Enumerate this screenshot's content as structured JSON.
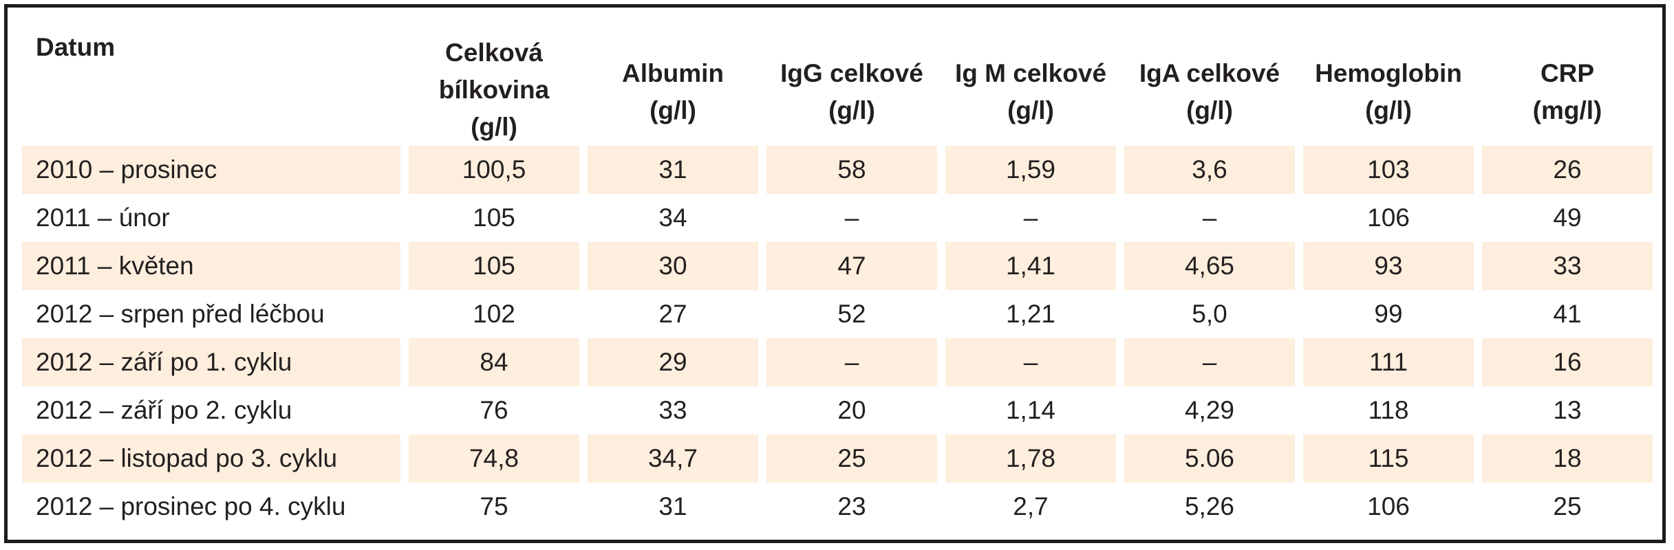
{
  "table": {
    "headers": [
      [
        "Datum"
      ],
      [
        "Celková",
        "bílkovina",
        "(g/l)"
      ],
      [
        "Albumin",
        "(g/l)"
      ],
      [
        "IgG celkové",
        "(g/l)"
      ],
      [
        "Ig M celkové",
        "(g/l)"
      ],
      [
        "IgA celkové",
        "(g/l)"
      ],
      [
        "Hemoglobin",
        "(g/l)"
      ],
      [
        "CRP",
        "(mg/l)"
      ]
    ],
    "rows": [
      [
        "2010 – prosinec",
        "100,5",
        "31",
        "58",
        "1,59",
        "3,6",
        "103",
        "26"
      ],
      [
        "2011 – únor",
        "105",
        "34",
        "–",
        "–",
        "–",
        "106",
        "49"
      ],
      [
        "2011 – květen",
        "105",
        "30",
        "47",
        "1,41",
        "4,65",
        "93",
        "33"
      ],
      [
        "2012 – srpen před léčbou",
        "102",
        "27",
        "52",
        "1,21",
        "5,0",
        "99",
        "41"
      ],
      [
        "2012 – září po 1. cyklu",
        "84",
        "29",
        "–",
        "–",
        "–",
        "111",
        "16"
      ],
      [
        "2012 – září po 2. cyklu",
        "76",
        "33",
        "20",
        "1,14",
        "4,29",
        "118",
        "13"
      ],
      [
        "2012 – listopad po 3. cyklu",
        "74,8",
        "34,7",
        "25",
        "1,78",
        "5.06",
        "115",
        "18"
      ],
      [
        "2012 – prosinec po 4. cyklu",
        "75",
        "31",
        "23",
        "2,7",
        "5,26",
        "106",
        "25"
      ]
    ],
    "shaded_row_color": "#fdeedd",
    "border_color": "#1f1b1c"
  }
}
